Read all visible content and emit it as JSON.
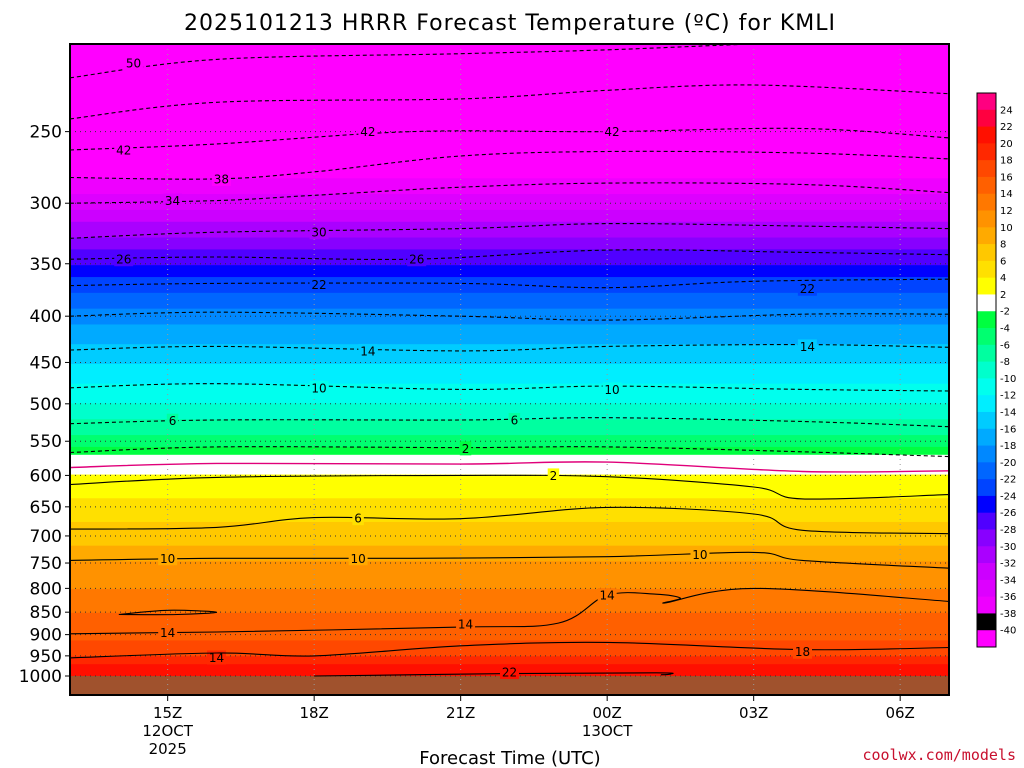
{
  "chart_data": {
    "type": "heatmap",
    "title": "2025101213 HRRR Forecast Temperature (ºC) for KMLI",
    "xlabel": "Forecast Time (UTC)",
    "ylabel": "",
    "x_ticks": [
      {
        "hour": 15,
        "lines": [
          "15Z",
          "12OCT",
          "2025"
        ]
      },
      {
        "hour": 18,
        "lines": [
          "18Z"
        ]
      },
      {
        "hour": 21,
        "lines": [
          "21Z"
        ]
      },
      {
        "hour": 24,
        "lines": [
          "00Z",
          "13OCT"
        ]
      },
      {
        "hour": 27,
        "lines": [
          "03Z"
        ]
      },
      {
        "hour": 30,
        "lines": [
          "06Z"
        ]
      }
    ],
    "xlim": [
      13,
      31
    ],
    "y_scale": "log-pressure",
    "ylim_hPa": [
      1000,
      200
    ],
    "y_ticks": [
      250,
      300,
      350,
      400,
      450,
      500,
      550,
      600,
      650,
      700,
      750,
      800,
      850,
      900,
      950,
      1000
    ],
    "grid": true,
    "colorbar_levels": [
      -40,
      -38,
      -36,
      -34,
      -32,
      -30,
      -28,
      -26,
      -24,
      -22,
      -20,
      -18,
      -16,
      -14,
      -12,
      -10,
      -8,
      -6,
      -4,
      -2,
      2,
      4,
      6,
      8,
      10,
      12,
      14,
      16,
      18,
      20,
      22,
      24
    ],
    "colors": {
      "lt_-38": "#ff00ff",
      "-38_-36": "#ee00ff",
      "-36_-34": "#dd00ff",
      "-34_-32": "#cc00ff",
      "-32_-30": "#aa00ff",
      "-30_-28": "#8800ff",
      "-28_-26": "#5000ff",
      "-26_-24": "#0000ff",
      "-24_-22": "#0044ff",
      "-22_-20": "#0066ff",
      "-20_-18": "#0088ff",
      "-18_-16": "#00aaff",
      "-16_-14": "#00ccff",
      "-14_-12": "#00eeff",
      "-12_-10": "#00ffee",
      "-10_-8": "#00ffcc",
      "-8_-6": "#00ffa0",
      "-6_-4": "#00ff70",
      "-4_-2": "#00ff40",
      "-2_2": "#ffffff",
      "2_4": "#ffff00",
      "4_6": "#ffe000",
      "6_8": "#ffc800",
      "8_10": "#ffaa00",
      "10_12": "#ff9200",
      "12_14": "#ff7800",
      "14_16": "#ff6000",
      "16_18": "#ff4800",
      "18_20": "#ff2800",
      "20_22": "#ff1000",
      "22_24": "#ff0040",
      "gt_24": "#ff0080",
      "ground": "#a0522d",
      "pos_contour": "#000000",
      "neg_contour": "#000000",
      "zero_contour": "#e0007a"
    },
    "vertical_profile": [
      {
        "p": 200,
        "t": -54
      },
      {
        "p": 250,
        "t": -44
      },
      {
        "p": 300,
        "t": -35
      },
      {
        "p": 350,
        "t": -26
      },
      {
        "p": 400,
        "t": -19
      },
      {
        "p": 450,
        "t": -14
      },
      {
        "p": 500,
        "t": -10
      },
      {
        "p": 550,
        "t": -5
      },
      {
        "p": 600,
        "t": 2
      },
      {
        "p": 650,
        "t": 5
      },
      {
        "p": 700,
        "t": 7
      },
      {
        "p": 750,
        "t": 10
      },
      {
        "p": 800,
        "t": 12
      },
      {
        "p": 850,
        "t": 14
      },
      {
        "p": 900,
        "t": 15
      },
      {
        "p": 950,
        "t": 18
      },
      {
        "p": 1000,
        "t": 22
      }
    ],
    "contours": [
      {
        "value": -50,
        "style": "dashed",
        "points": [
          [
            13,
            218
          ],
          [
            16,
            208
          ],
          [
            21,
            205
          ],
          [
            24,
            203
          ],
          [
            27,
            200
          ],
          [
            31,
            197
          ]
        ],
        "labels": [
          [
            14.3,
            210
          ]
        ]
      },
      {
        "value": -46,
        "style": "dashed",
        "points": [
          [
            13,
            242
          ],
          [
            16,
            232
          ],
          [
            21,
            230
          ],
          [
            24,
            225
          ],
          [
            27,
            222
          ],
          [
            31,
            227
          ]
        ],
        "labels": []
      },
      {
        "value": -42,
        "style": "dashed",
        "points": [
          [
            13,
            262
          ],
          [
            16,
            258
          ],
          [
            20,
            250
          ],
          [
            24,
            250
          ],
          [
            28,
            248
          ],
          [
            31,
            254
          ]
        ],
        "labels": [
          [
            14.1,
            262
          ],
          [
            19.1,
            250
          ],
          [
            24.1,
            250
          ]
        ]
      },
      {
        "value": -38,
        "style": "dashed",
        "points": [
          [
            13,
            281
          ],
          [
            16,
            282
          ],
          [
            18,
            277
          ],
          [
            21,
            266
          ],
          [
            24,
            263
          ],
          [
            28,
            264
          ],
          [
            31,
            268
          ]
        ],
        "labels": [
          [
            16.1,
            282
          ]
        ]
      },
      {
        "value": -34,
        "style": "dashed",
        "points": [
          [
            13,
            300
          ],
          [
            16,
            298
          ],
          [
            18,
            294
          ],
          [
            21,
            288
          ],
          [
            24,
            285
          ],
          [
            28,
            286
          ],
          [
            31,
            292
          ]
        ],
        "labels": [
          [
            15.1,
            298
          ]
        ]
      },
      {
        "value": -30,
        "style": "dashed",
        "points": [
          [
            13,
            328
          ],
          [
            16,
            323
          ],
          [
            21,
            320
          ],
          [
            24,
            316
          ],
          [
            28,
            318
          ],
          [
            31,
            320
          ]
        ],
        "labels": [
          [
            18.1,
            323
          ]
        ]
      },
      {
        "value": -26,
        "style": "dashed",
        "points": [
          [
            13,
            346
          ],
          [
            16,
            344
          ],
          [
            20,
            346
          ],
          [
            24,
            338
          ],
          [
            28,
            340
          ],
          [
            31,
            342
          ]
        ],
        "labels": [
          [
            14.1,
            346
          ],
          [
            20.1,
            346
          ]
        ]
      },
      {
        "value": -22,
        "style": "dashed",
        "points": [
          [
            13,
            370
          ],
          [
            16,
            368
          ],
          [
            21,
            368
          ],
          [
            24,
            372
          ],
          [
            27,
            366
          ],
          [
            31,
            364
          ]
        ],
        "labels": [
          [
            18.1,
            369
          ],
          [
            28.1,
            373
          ]
        ]
      },
      {
        "value": -18,
        "style": "dashed",
        "points": [
          [
            13,
            400
          ],
          [
            16,
            396
          ],
          [
            21,
            400
          ],
          [
            24,
            404
          ],
          [
            28,
            398
          ],
          [
            31,
            398
          ]
        ],
        "labels": []
      },
      {
        "value": -14,
        "style": "dashed",
        "points": [
          [
            13,
            436
          ],
          [
            16,
            432
          ],
          [
            21,
            437
          ],
          [
            24,
            432
          ],
          [
            28,
            430
          ],
          [
            31,
            433
          ]
        ],
        "labels": [
          [
            19.1,
            437
          ],
          [
            28.1,
            432
          ]
        ]
      },
      {
        "value": -10,
        "style": "dashed",
        "points": [
          [
            13,
            480
          ],
          [
            16,
            475
          ],
          [
            21,
            482
          ],
          [
            24,
            478
          ],
          [
            28,
            482
          ],
          [
            31,
            484
          ]
        ],
        "labels": [
          [
            18.1,
            480
          ],
          [
            24.1,
            482
          ]
        ]
      },
      {
        "value": -6,
        "style": "dashed",
        "points": [
          [
            13,
            526
          ],
          [
            16,
            521
          ],
          [
            21,
            521
          ],
          [
            24,
            518
          ],
          [
            28,
            523
          ],
          [
            31,
            530
          ]
        ],
        "labels": [
          [
            15.1,
            522
          ],
          [
            22.1,
            521
          ]
        ]
      },
      {
        "value": -2,
        "style": "dashed",
        "points": [
          [
            13,
            566
          ],
          [
            16,
            558
          ],
          [
            21,
            559
          ],
          [
            24,
            558
          ],
          [
            28,
            565
          ],
          [
            31,
            572
          ]
        ],
        "labels": [
          [
            21.1,
            560
          ]
        ]
      },
      {
        "value": 0,
        "style": "solid",
        "points": [
          [
            13,
            588
          ],
          [
            16,
            582
          ],
          [
            21,
            583
          ],
          [
            24,
            580
          ],
          [
            28,
            594
          ],
          [
            31,
            593
          ]
        ],
        "labels": []
      },
      {
        "value": 2,
        "style": "solid",
        "points": [
          [
            13,
            614
          ],
          [
            16,
            603
          ],
          [
            21,
            600
          ],
          [
            24,
            602
          ],
          [
            27,
            618
          ],
          [
            28,
            637
          ],
          [
            31,
            630
          ]
        ],
        "labels": [
          [
            22.9,
            600
          ]
        ]
      },
      {
        "value": 6,
        "style": "solid",
        "points": [
          [
            13,
            688
          ],
          [
            16,
            685
          ],
          [
            18,
            668
          ],
          [
            21,
            670
          ],
          [
            24,
            651
          ],
          [
            27,
            662
          ],
          [
            28,
            690
          ],
          [
            31,
            696
          ]
        ],
        "labels": [
          [
            18.9,
            669
          ]
        ]
      },
      {
        "value": 10,
        "style": "solid",
        "points": [
          [
            13,
            745
          ],
          [
            16,
            741
          ],
          [
            20,
            741
          ],
          [
            24,
            738
          ],
          [
            27,
            730
          ],
          [
            28,
            745
          ],
          [
            31,
            760
          ]
        ],
        "labels": [
          [
            15.0,
            741
          ],
          [
            18.9,
            741
          ],
          [
            25.9,
            734
          ]
        ]
      },
      {
        "value": 14,
        "style": "solid",
        "points": [
          [
            13,
            898
          ],
          [
            16,
            894
          ],
          [
            21,
            883
          ],
          [
            23,
            874
          ],
          [
            24,
            814
          ],
          [
            25,
            812
          ],
          [
            25.5,
            820
          ],
          [
            25.2,
            830
          ],
          [
            27,
            800
          ],
          [
            31,
            827
          ]
        ],
        "labels": [
          [
            15.0,
            895
          ],
          [
            21.1,
            876
          ],
          [
            24.0,
            814
          ]
        ]
      },
      {
        "value": 14,
        "style": "solid",
        "points": [
          [
            14,
            855
          ],
          [
            15,
            846
          ],
          [
            16,
            850
          ],
          [
            15.2,
            855
          ],
          [
            14,
            855
          ]
        ],
        "labels": [
          [
            16.0,
            954
          ]
        ]
      },
      {
        "value": 18,
        "style": "solid",
        "points": [
          [
            13,
            955
          ],
          [
            16,
            943
          ],
          [
            18,
            950
          ],
          [
            21,
            926
          ],
          [
            24,
            918
          ],
          [
            28,
            935
          ],
          [
            31,
            930
          ]
        ],
        "labels": [
          [
            28.0,
            940
          ]
        ]
      },
      {
        "value": 22,
        "style": "solid",
        "points": [
          [
            18,
            1000
          ],
          [
            22,
            994
          ],
          [
            25,
            992
          ],
          [
            25.3,
            995
          ],
          [
            25.1,
            997
          ]
        ],
        "labels": [
          [
            22.0,
            990
          ]
        ]
      }
    ]
  }
}
